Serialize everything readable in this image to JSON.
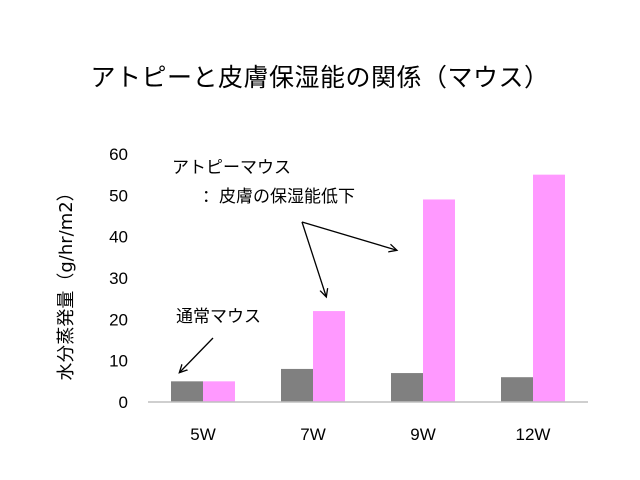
{
  "chart_data": {
    "type": "bar",
    "title": "アトピーと皮膚保湿能の関係（マウス）",
    "ylabel": "水分蒸発量（g/hr/m2）",
    "xlabel": "",
    "categories": [
      "5W",
      "7W",
      "9W",
      "12W"
    ],
    "series": [
      {
        "values": [
          5,
          8,
          7,
          6
        ],
        "color": "#808080"
      },
      {
        "values": [
          5,
          22,
          49,
          55
        ],
        "color": "#ff99ff"
      }
    ],
    "ylim": [
      0,
      60
    ],
    "yticks": [
      0,
      10,
      20,
      30,
      40,
      50,
      60
    ],
    "grid": false,
    "annotations": {
      "normal": "通常マウス",
      "atopy_line1": "アトピーマウス",
      "atopy_line2": "：皮膚の保湿能低下"
    }
  }
}
